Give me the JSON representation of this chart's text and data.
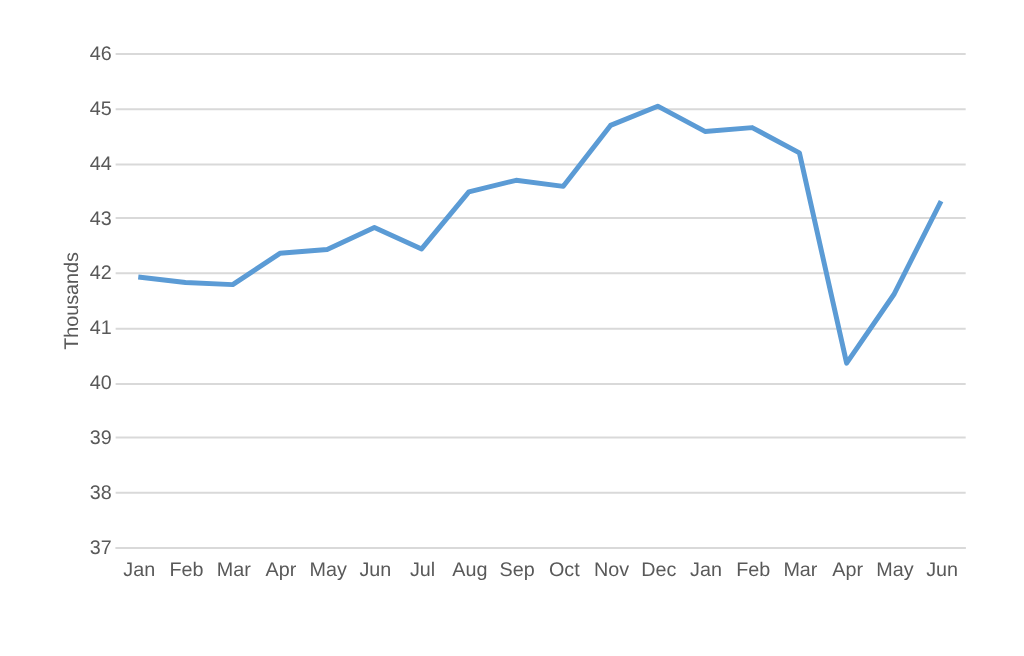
{
  "chart_data": {
    "type": "line",
    "ylabel": "Thousands",
    "categories": [
      "Jan",
      "Feb",
      "Mar",
      "Apr",
      "May",
      "Jun",
      "Jul",
      "Aug",
      "Sep",
      "Oct",
      "Nov",
      "Dec",
      "Jan",
      "Feb",
      "Mar",
      "Apr",
      "May",
      "Jun"
    ],
    "series": [
      {
        "color": "#5b9bd5",
        "values": [
          41.92,
          41.82,
          41.78,
          42.35,
          42.42,
          42.82,
          42.43,
          43.47,
          43.68,
          43.57,
          44.68,
          45.03,
          44.57,
          44.64,
          44.18,
          40.35,
          41.6,
          43.3
        ]
      }
    ],
    "ylim": [
      37,
      46
    ],
    "yticks": [
      37,
      38,
      39,
      40,
      41,
      42,
      43,
      44,
      45,
      46
    ],
    "grid": "y",
    "marker": "none",
    "line_style": "solid"
  }
}
